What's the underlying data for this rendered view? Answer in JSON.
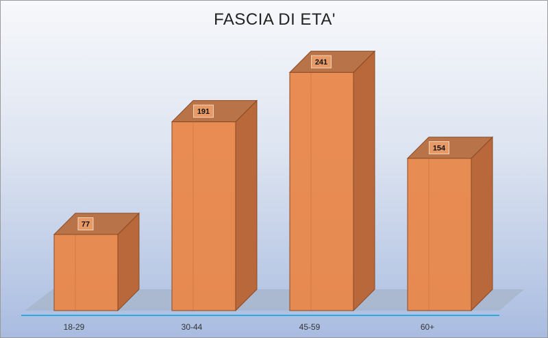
{
  "chart_data": {
    "type": "bar",
    "title": "FASCIA DI ETA'",
    "categories": [
      "18-29",
      "30-44",
      "45-59",
      "60+"
    ],
    "values": [
      77,
      191,
      241,
      154
    ],
    "ylim": [
      0,
      250
    ],
    "grid": false,
    "legend": "none",
    "style": "3d-column",
    "colors": {
      "bar_front": "#e8874a",
      "bar_side": "#b8683a",
      "bar_top": "#b87448",
      "bar_edge": "#8a4a22",
      "floor": "#a8b6cc",
      "axis_line": "#2fa8e0"
    }
  }
}
